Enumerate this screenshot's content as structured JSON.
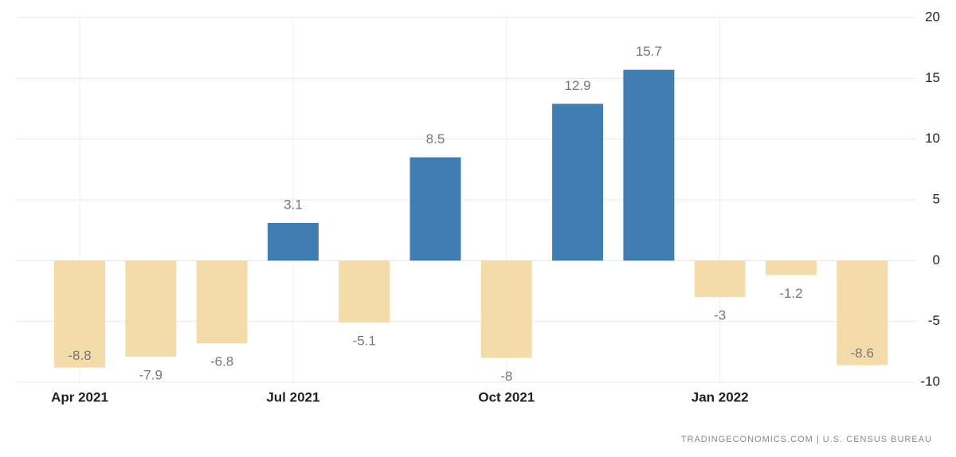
{
  "chart_data": {
    "type": "bar",
    "categories": [
      "Apr 2021",
      null,
      null,
      "Jul 2021",
      null,
      null,
      "Oct 2021",
      null,
      null,
      "Jan 2022",
      null,
      null
    ],
    "values": [
      -8.8,
      -7.9,
      -6.8,
      3.1,
      -5.1,
      8.5,
      -8,
      12.9,
      15.7,
      -3,
      -1.2,
      -8.6
    ],
    "positive_color": "#3f7db3",
    "negative_color": "#f4dcaa",
    "ylim": [
      -10,
      20
    ],
    "yticks": [
      -10,
      -5,
      0,
      5,
      10,
      15,
      20
    ],
    "grid": true,
    "source": "TRADINGECONOMICS.COM | U.S. CENSUS BUREAU"
  }
}
